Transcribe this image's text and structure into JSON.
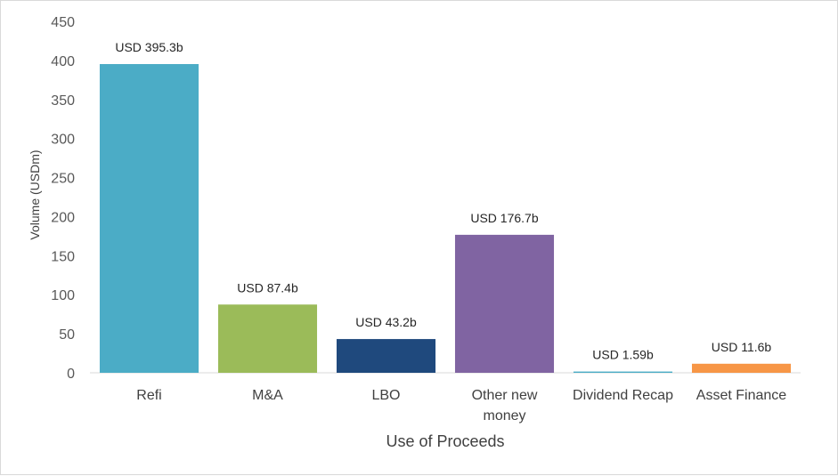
{
  "chart_data": {
    "type": "bar",
    "categories": [
      "Refi",
      "M&A",
      "LBO",
      "Other new money",
      "Dividend Recap",
      "Asset Finance"
    ],
    "category_lines": [
      [
        "Refi"
      ],
      [
        "M&A"
      ],
      [
        "LBO"
      ],
      [
        "Other new",
        "money"
      ],
      [
        "Dividend Recap"
      ],
      [
        "Asset Finance"
      ]
    ],
    "values": [
      395.3,
      87.4,
      43.2,
      176.7,
      1.59,
      11.6
    ],
    "data_labels": [
      "USD 395.3b",
      "USD 87.4b",
      "USD 43.2b",
      "USD 176.7b",
      "USD 1.59b",
      "USD 11.6b"
    ],
    "colors": [
      "#4BACC6",
      "#9BBB59",
      "#1F497D",
      "#8064A2",
      "#4BACC6",
      "#F79646"
    ],
    "xlabel": "Use of Proceeds",
    "ylabel": "Volume (USDm)",
    "ylim": [
      0,
      450
    ],
    "yticks": [
      0,
      50,
      100,
      150,
      200,
      250,
      300,
      350,
      400,
      450
    ],
    "grid": false,
    "legend": "none"
  }
}
